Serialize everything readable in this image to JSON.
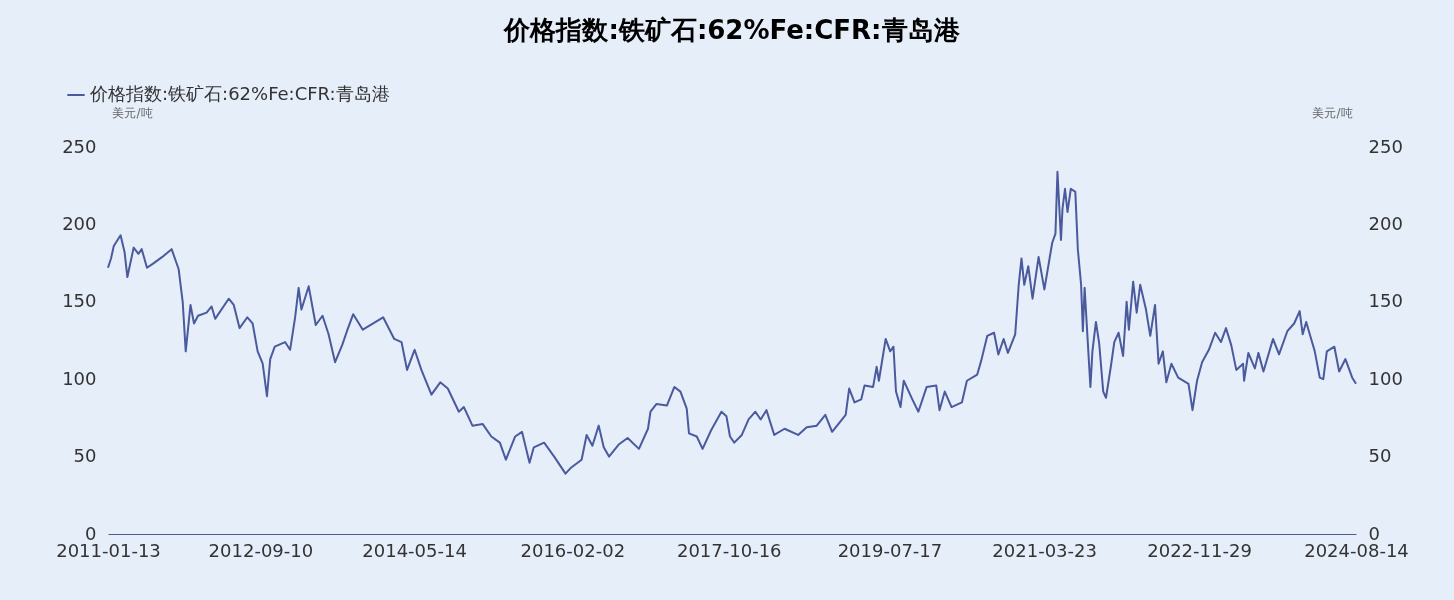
{
  "chart_data": {
    "type": "line",
    "title": "价格指数:铁矿石:62%Fe:CFR:青岛港",
    "ylabel": "美元/吨",
    "y2label": "美元/吨",
    "legend": "top left",
    "line_style": "solid",
    "xlim": [
      "2011-01-13",
      "2024-08-14"
    ],
    "xticks": [
      "2011-01-13",
      "2012-09-10",
      "2014-05-14",
      "2016-02-02",
      "2017-10-16",
      "2019-07-17",
      "2021-03-23",
      "2022-11-29",
      "2024-08-14"
    ],
    "ylim": [
      0,
      250
    ],
    "yticks": [
      0,
      50,
      100,
      150,
      200,
      250
    ],
    "y2lim": [
      0,
      250
    ],
    "y2ticks": [
      0,
      50,
      100,
      150,
      200,
      250
    ],
    "x": [
      "2011-01-13",
      "2011-01-25",
      "2011-02-05",
      "2011-03-04",
      "2011-03-20",
      "2011-03-31",
      "2011-04-25",
      "2011-05-14",
      "2011-05-27",
      "2011-06-17",
      "2011-07-14",
      "2011-08-17",
      "2011-09-23",
      "2011-10-21",
      "2011-11-06",
      "2011-11-18",
      "2011-12-07",
      "2011-12-21",
      "2012-01-06",
      "2012-02-09",
      "2012-02-29",
      "2012-03-14",
      "2012-05-07",
      "2012-05-27",
      "2012-06-19",
      "2012-07-20",
      "2012-08-10",
      "2012-08-30",
      "2012-09-19",
      "2012-10-06",
      "2012-10-19",
      "2012-11-06",
      "2012-12-17",
      "2013-01-06",
      "2013-01-26",
      "2013-02-09",
      "2013-02-20",
      "2013-03-21",
      "2013-04-18",
      "2013-05-15",
      "2013-06-08",
      "2013-07-04",
      "2013-08-01",
      "2013-08-20",
      "2013-09-14",
      "2013-10-22",
      "2014-01-11",
      "2014-02-24",
      "2014-03-25",
      "2014-04-16",
      "2014-05-16",
      "2014-06-12",
      "2014-07-22",
      "2014-08-26",
      "2014-09-25",
      "2014-11-08",
      "2014-11-28",
      "2015-01-01",
      "2015-02-11",
      "2015-03-17",
      "2015-04-20",
      "2015-05-14",
      "2015-06-20",
      "2015-07-17",
      "2015-08-16",
      "2015-09-02",
      "2015-10-13",
      "2015-11-22",
      "2016-01-06",
      "2016-01-29",
      "2016-03-10",
      "2016-03-30",
      "2016-04-22",
      "2016-05-17",
      "2016-06-06",
      "2016-06-27",
      "2016-08-06",
      "2016-09-09",
      "2016-10-24",
      "2016-11-29",
      "2016-12-09",
      "2017-01-02",
      "2017-02-12",
      "2017-03-14",
      "2017-04-07",
      "2017-05-02",
      "2017-05-11",
      "2017-06-11",
      "2017-07-04",
      "2017-08-07",
      "2017-09-17",
      "2017-10-07",
      "2017-10-21",
      "2017-11-07",
      "2017-12-07",
      "2018-01-03",
      "2018-01-30",
      "2018-02-20",
      "2018-03-15",
      "2018-04-15",
      "2018-05-26",
      "2018-07-19",
      "2018-08-22",
      "2018-10-01",
      "2018-11-04",
      "2018-12-01",
      "2019-01-24",
      "2019-02-07",
      "2019-02-28",
      "2019-03-27",
      "2019-04-09",
      "2019-05-13",
      "2019-05-27",
      "2019-06-05",
      "2019-07-02",
      "2019-07-20",
      "2019-08-02",
      "2019-08-12",
      "2019-08-30",
      "2019-09-12",
      "2019-10-16",
      "2019-11-09",
      "2019-12-12",
      "2020-01-19",
      "2020-02-01",
      "2020-02-22",
      "2020-03-20",
      "2020-04-30",
      "2020-05-20",
      "2020-06-30",
      "2020-07-16",
      "2020-08-09",
      "2020-09-05",
      "2020-09-22",
      "2020-10-13",
      "2020-10-30",
      "2020-11-28",
      "2020-12-12",
      "2020-12-23",
      "2021-01-03",
      "2021-01-19",
      "2021-02-05",
      "2021-03-01",
      "2021-03-24",
      "2021-04-24",
      "2021-05-07",
      "2021-05-15",
      "2021-05-29",
      "2021-06-04",
      "2021-06-14",
      "2021-06-24",
      "2021-07-07",
      "2021-07-25",
      "2021-08-04",
      "2021-08-17",
      "2021-08-24",
      "2021-08-31",
      "2021-09-23",
      "2021-10-01",
      "2021-10-15",
      "2021-10-28",
      "2021-11-13",
      "2021-11-24",
      "2021-12-14",
      "2021-12-27",
      "2022-01-13",
      "2022-01-31",
      "2022-02-14",
      "2022-02-23",
      "2022-03-12",
      "2022-03-26",
      "2022-04-09",
      "2022-05-02",
      "2022-05-19",
      "2022-06-07",
      "2022-06-21",
      "2022-07-08",
      "2022-07-22",
      "2022-08-11",
      "2022-09-07",
      "2022-10-18",
      "2022-11-03",
      "2022-11-21",
      "2022-12-11",
      "2023-01-07",
      "2023-02-01",
      "2023-02-24",
      "2023-03-16",
      "2023-04-06",
      "2023-04-26",
      "2023-05-23",
      "2023-05-27",
      "2023-06-13",
      "2023-07-09",
      "2023-07-23",
      "2023-08-12",
      "2023-09-19",
      "2023-10-13",
      "2023-11-15",
      "2023-12-12",
      "2024-01-03",
      "2024-01-15",
      "2024-01-29",
      "2024-03-03",
      "2024-03-23",
      "2024-04-06",
      "2024-04-20",
      "2024-05-20",
      "2024-06-08",
      "2024-07-03",
      "2024-07-30",
      "2024-08-14"
    ],
    "series": [
      {
        "name": "价格指数:铁矿石:62%Fe:CFR:青岛港",
        "color": "#4a5a9c",
        "values": [
          172,
          178,
          186,
          193,
          182,
          166,
          185,
          181,
          184,
          172,
          175,
          179,
          184,
          171,
          150,
          118,
          148,
          136,
          141,
          143,
          147,
          139,
          152,
          148,
          133,
          140,
          136,
          118,
          110,
          89,
          113,
          121,
          124,
          119,
          140,
          159,
          145,
          160,
          135,
          141,
          129,
          111,
          122,
          131,
          142,
          132,
          140,
          126,
          124,
          106,
          119,
          106,
          90,
          98,
          94,
          79,
          82,
          70,
          71,
          63,
          59,
          48,
          63,
          66,
          46,
          56,
          59,
          50,
          39,
          43,
          48,
          64,
          57,
          70,
          56,
          50,
          58,
          62,
          55,
          68,
          79,
          84,
          83,
          95,
          92,
          81,
          65,
          63,
          55,
          67,
          79,
          76,
          63,
          59,
          64,
          74,
          79,
          74,
          80,
          64,
          68,
          64,
          69,
          70,
          77,
          66,
          77,
          94,
          85,
          87,
          96,
          95,
          108,
          99,
          126,
          118,
          121,
          92,
          82,
          99,
          87,
          79,
          95,
          96,
          80,
          92,
          82,
          85,
          99,
          103,
          112,
          128,
          130,
          116,
          126,
          117,
          129,
          161,
          178,
          161,
          173,
          152,
          179,
          158,
          188,
          194,
          234,
          190,
          210,
          223,
          208,
          223,
          221,
          184,
          161,
          131,
          159,
          95,
          118,
          137,
          123,
          92,
          88,
          109,
          124,
          130,
          115,
          150,
          132,
          163,
          143,
          161,
          145,
          128,
          148,
          110,
          118,
          98,
          110,
          101,
          97,
          80,
          99,
          111,
          119,
          130,
          124,
          133,
          122,
          106,
          110,
          99,
          117,
          107,
          117,
          105,
          126,
          116,
          131,
          136,
          144,
          129,
          137,
          118,
          101,
          100,
          118,
          121,
          105,
          113,
          101,
          97
        ]
      }
    ]
  }
}
